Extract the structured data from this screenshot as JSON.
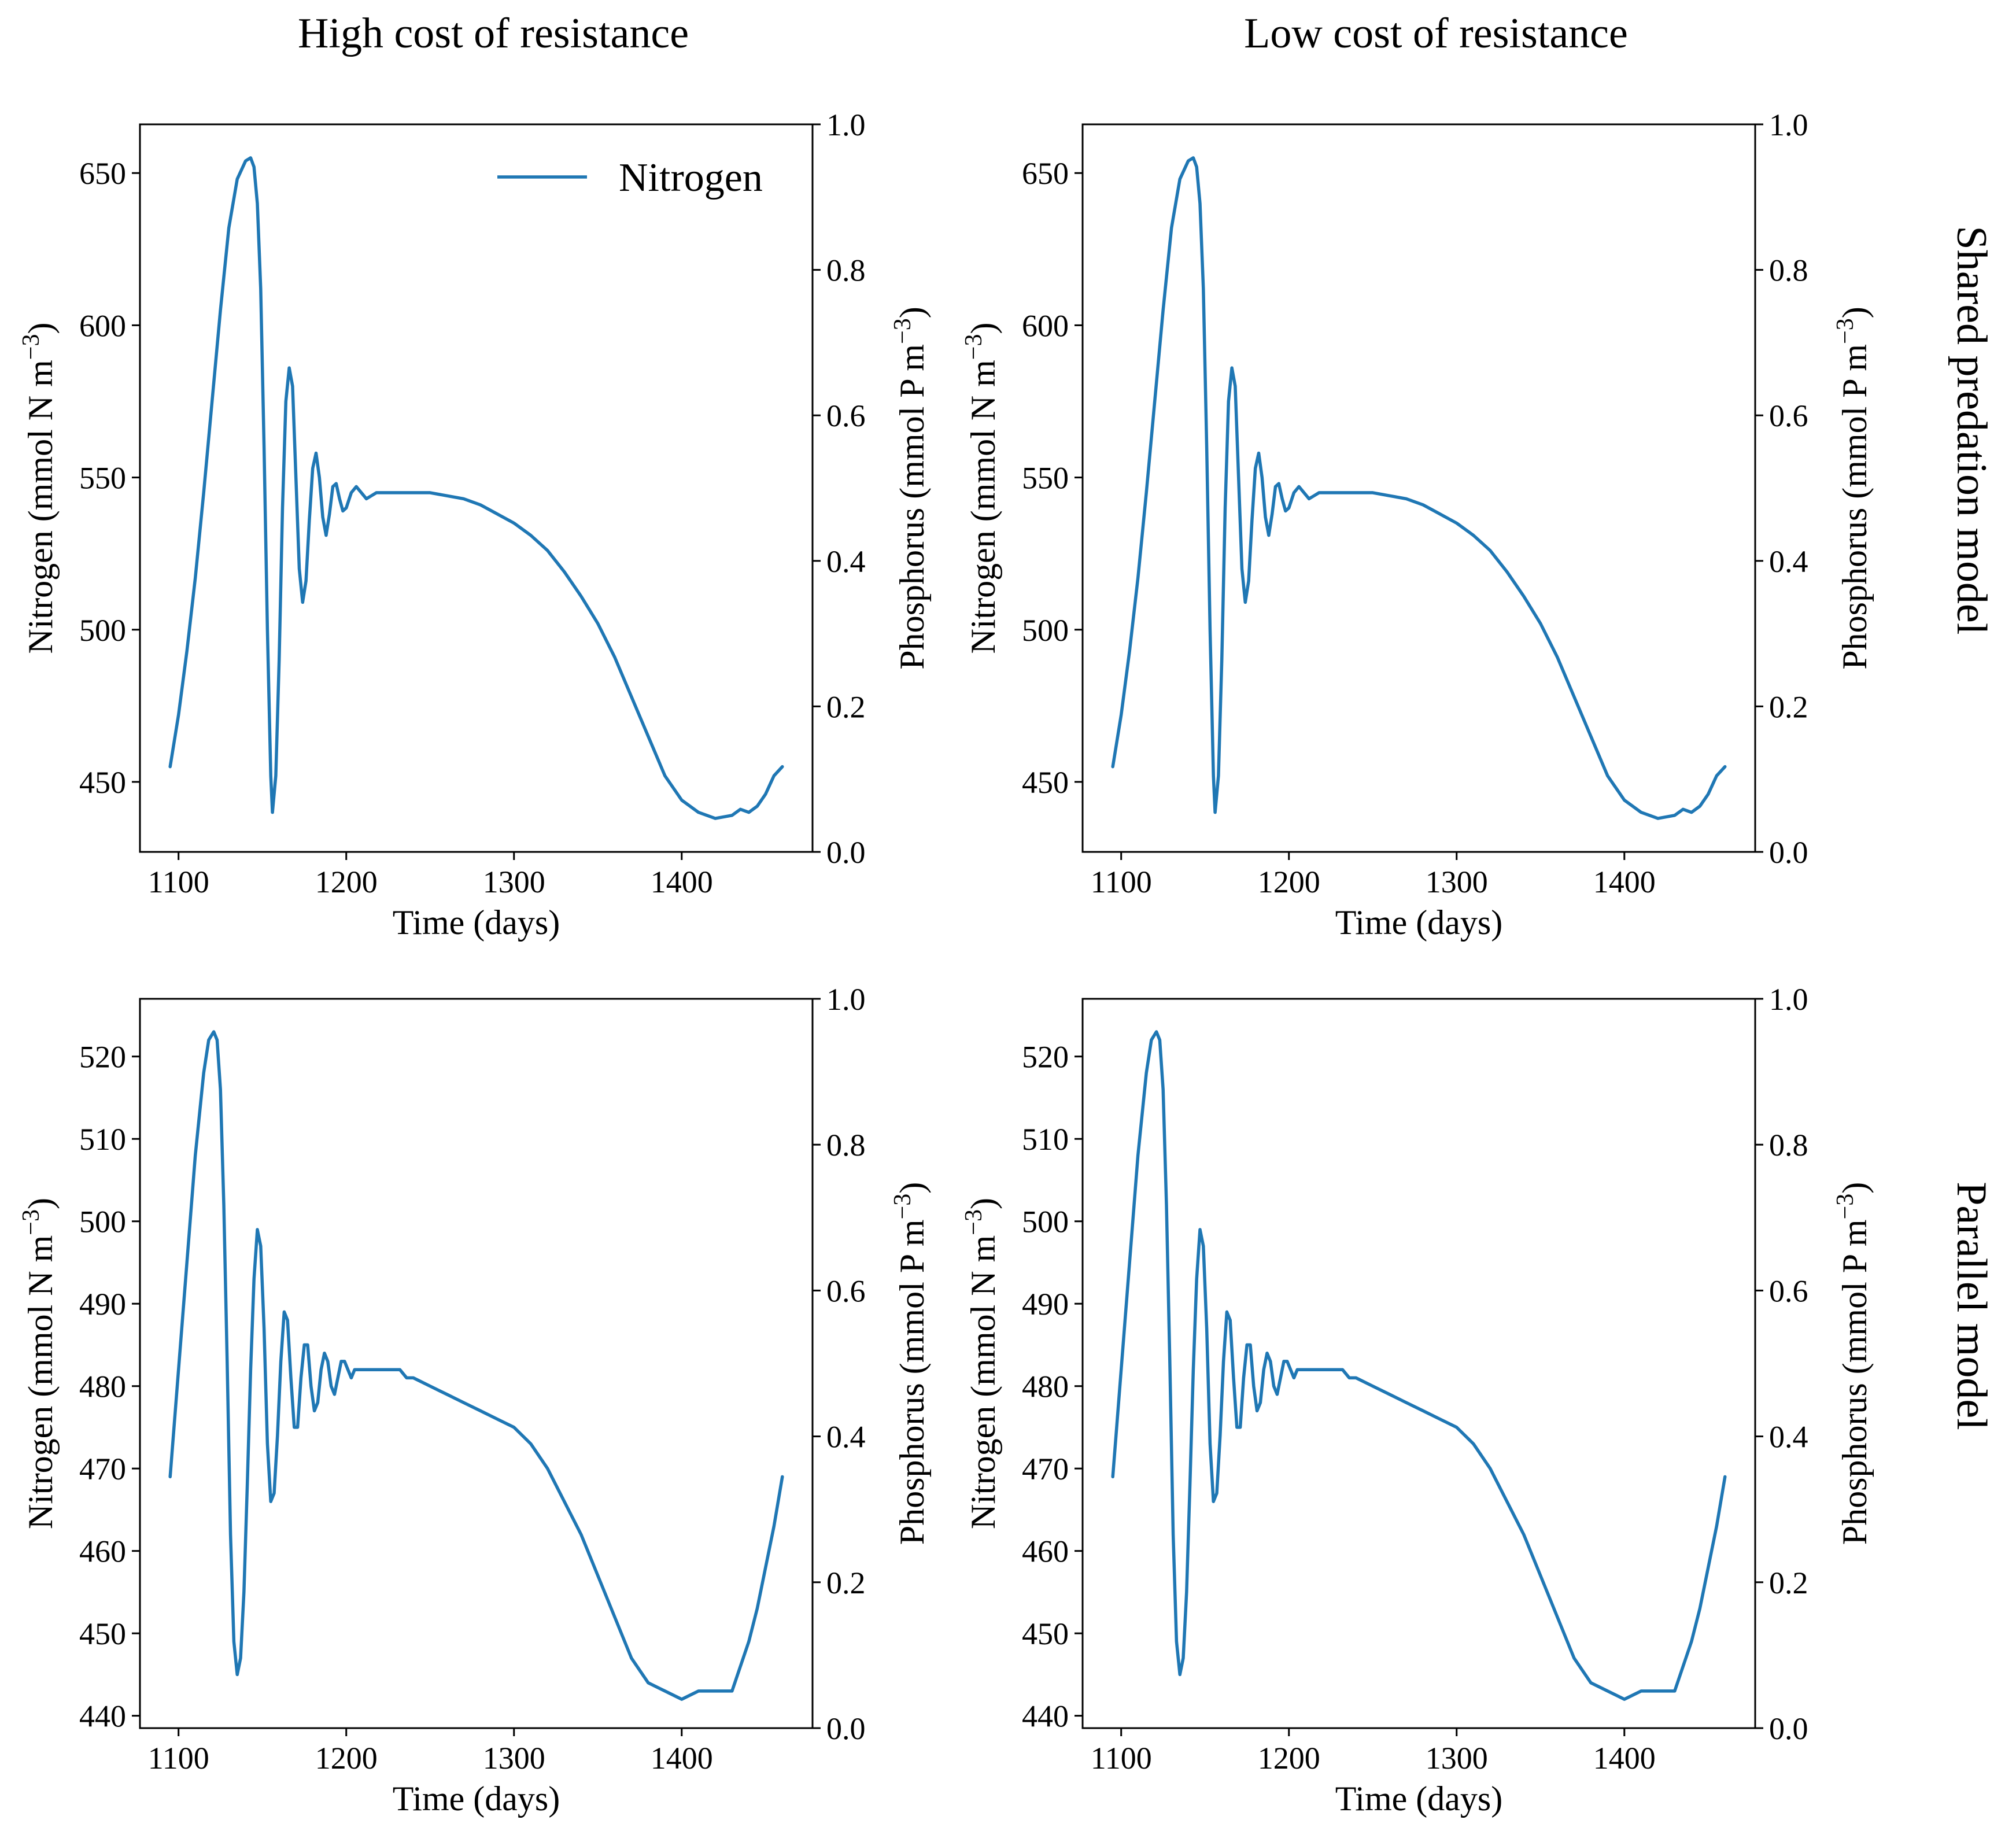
{
  "figure": {
    "column_titles": [
      "High cost of resistance",
      "Low cost of resistance"
    ],
    "row_titles": [
      "Shared predation model",
      "Parallel model"
    ],
    "line_color": "#1f77b4"
  },
  "chart_data": [
    {
      "type": "line",
      "panel": "top-left",
      "title": "",
      "xlabel": "Time (days)",
      "ylabel": "Nitrogen (mmol N m⁻³)",
      "y2label": "Phosphorus (mmol P m⁻³)",
      "xlim": [
        1077,
        1478
      ],
      "ylim": [
        427,
        666
      ],
      "y2lim": [
        0,
        1
      ],
      "xticks": [
        1100,
        1200,
        1300,
        1400
      ],
      "yticks": [
        450,
        500,
        550,
        600,
        650
      ],
      "y2ticks": [
        0.0,
        0.2,
        0.4,
        0.6,
        0.8,
        1.0
      ],
      "y2ticklabels": [
        "0.0",
        "0.2",
        "0.4",
        "0.6",
        "0.8",
        "1.0"
      ],
      "legend": {
        "entries": [
          "Nitrogen"
        ],
        "placement": "top-right"
      },
      "series": [
        {
          "name": "Nitrogen",
          "x": [
            1095,
            1100,
            1105,
            1110,
            1115,
            1120,
            1125,
            1130,
            1135,
            1140,
            1143,
            1145,
            1147,
            1149,
            1151,
            1153,
            1155,
            1156,
            1158,
            1160,
            1162,
            1164,
            1166,
            1168,
            1170,
            1172,
            1174,
            1176,
            1178,
            1180,
            1182,
            1184,
            1186,
            1188,
            1190,
            1192,
            1194,
            1196,
            1198,
            1200,
            1203,
            1206,
            1209,
            1212,
            1215,
            1218,
            1222,
            1226,
            1230,
            1235,
            1240,
            1250,
            1260,
            1270,
            1280,
            1290,
            1300,
            1310,
            1320,
            1330,
            1340,
            1350,
            1360,
            1370,
            1380,
            1390,
            1400,
            1410,
            1420,
            1430,
            1435,
            1440,
            1445,
            1450,
            1455,
            1460
          ],
          "values": [
            455,
            472,
            493,
            517,
            545,
            575,
            605,
            632,
            648,
            654,
            655,
            652,
            640,
            612,
            560,
            500,
            452,
            440,
            452,
            490,
            540,
            575,
            586,
            580,
            550,
            520,
            509,
            516,
            536,
            553,
            558,
            550,
            537,
            531,
            538,
            547,
            548,
            543,
            539,
            540,
            545,
            547,
            545,
            543,
            544,
            545,
            545,
            545,
            545,
            545,
            545,
            545,
            544,
            543,
            541,
            538,
            535,
            531,
            526,
            519,
            511,
            502,
            491,
            478,
            465,
            452,
            444,
            440,
            438,
            439,
            441,
            440,
            442,
            446,
            452,
            455
          ]
        }
      ]
    },
    {
      "type": "line",
      "panel": "top-right",
      "title": "",
      "xlabel": "Time (days)",
      "ylabel": "Nitrogen (mmol N m⁻³)",
      "y2label": "Phosphorus (mmol P m⁻³)",
      "xlim": [
        1077,
        1478
      ],
      "ylim": [
        427,
        666
      ],
      "y2lim": [
        0,
        1
      ],
      "xticks": [
        1100,
        1200,
        1300,
        1400
      ],
      "yticks": [
        450,
        500,
        550,
        600,
        650
      ],
      "y2ticks": [
        0.0,
        0.2,
        0.4,
        0.6,
        0.8,
        1.0
      ],
      "y2ticklabels": [
        "0.0",
        "0.2",
        "0.4",
        "0.6",
        "0.8",
        "1.0"
      ],
      "series": [
        {
          "x": [
            1095,
            1100,
            1105,
            1110,
            1115,
            1120,
            1125,
            1130,
            1135,
            1140,
            1143,
            1145,
            1147,
            1149,
            1151,
            1153,
            1155,
            1156,
            1158,
            1160,
            1162,
            1164,
            1166,
            1168,
            1170,
            1172,
            1174,
            1176,
            1178,
            1180,
            1182,
            1184,
            1186,
            1188,
            1190,
            1192,
            1194,
            1196,
            1198,
            1200,
            1203,
            1206,
            1209,
            1212,
            1215,
            1218,
            1222,
            1226,
            1230,
            1235,
            1240,
            1250,
            1260,
            1270,
            1280,
            1290,
            1300,
            1310,
            1320,
            1330,
            1340,
            1350,
            1360,
            1370,
            1380,
            1390,
            1400,
            1410,
            1420,
            1430,
            1435,
            1440,
            1445,
            1450,
            1455,
            1460
          ],
          "values": [
            455,
            472,
            493,
            517,
            545,
            575,
            605,
            632,
            648,
            654,
            655,
            652,
            640,
            612,
            560,
            500,
            452,
            440,
            452,
            490,
            540,
            575,
            586,
            580,
            550,
            520,
            509,
            516,
            536,
            553,
            558,
            550,
            537,
            531,
            538,
            547,
            548,
            543,
            539,
            540,
            545,
            547,
            545,
            543,
            544,
            545,
            545,
            545,
            545,
            545,
            545,
            545,
            544,
            543,
            541,
            538,
            535,
            531,
            526,
            519,
            511,
            502,
            491,
            478,
            465,
            452,
            444,
            440,
            438,
            439,
            441,
            440,
            442,
            446,
            452,
            455
          ]
        }
      ]
    },
    {
      "type": "line",
      "panel": "bottom-left",
      "title": "",
      "xlabel": "Time (days)",
      "ylabel": "Nitrogen (mmol N m⁻³)",
      "y2label": "Phosphorus (mmol P m⁻³)",
      "xlim": [
        1077,
        1478
      ],
      "ylim": [
        438.5,
        527
      ],
      "y2lim": [
        0,
        1
      ],
      "xticks": [
        1100,
        1200,
        1300,
        1400
      ],
      "yticks": [
        440,
        450,
        460,
        470,
        480,
        490,
        500,
        510,
        520
      ],
      "y2ticks": [
        0.0,
        0.2,
        0.4,
        0.6,
        0.8,
        1.0
      ],
      "y2ticklabels": [
        "0.0",
        "0.2",
        "0.4",
        "0.6",
        "0.8",
        "1.0"
      ],
      "series": [
        {
          "x": [
            1095,
            1100,
            1105,
            1110,
            1115,
            1118,
            1121,
            1123,
            1125,
            1127,
            1129,
            1131,
            1133,
            1135,
            1137,
            1139,
            1141,
            1143,
            1145,
            1147,
            1149,
            1151,
            1153,
            1155,
            1157,
            1159,
            1161,
            1163,
            1165,
            1167,
            1169,
            1171,
            1173,
            1175,
            1177,
            1179,
            1181,
            1183,
            1185,
            1187,
            1189,
            1191,
            1193,
            1195,
            1197,
            1199,
            1201,
            1203,
            1205,
            1208,
            1211,
            1214,
            1217,
            1220,
            1224,
            1228,
            1232,
            1236,
            1240,
            1250,
            1260,
            1270,
            1280,
            1290,
            1300,
            1310,
            1320,
            1330,
            1340,
            1350,
            1360,
            1370,
            1380,
            1390,
            1400,
            1410,
            1420,
            1425,
            1430,
            1435,
            1440,
            1445,
            1450,
            1455,
            1460
          ],
          "values": [
            469,
            482,
            495,
            508,
            518,
            522,
            523,
            522,
            516,
            502,
            483,
            462,
            449,
            445,
            447,
            455,
            468,
            482,
            493,
            499,
            497,
            487,
            473,
            466,
            467,
            474,
            483,
            489,
            488,
            481,
            475,
            475,
            481,
            485,
            485,
            480,
            477,
            478,
            482,
            484,
            483,
            480,
            479,
            481,
            483,
            483,
            482,
            481,
            482,
            482,
            482,
            482,
            482,
            482,
            482,
            482,
            482,
            481,
            481,
            480,
            479,
            478,
            477,
            476,
            475,
            473,
            470,
            466,
            462,
            457,
            452,
            447,
            444,
            443,
            442,
            443,
            443,
            443,
            443,
            446,
            449,
            453,
            458,
            463,
            469
          ]
        }
      ]
    },
    {
      "type": "line",
      "panel": "bottom-right",
      "title": "",
      "xlabel": "Time (days)",
      "ylabel": "Nitrogen (mmol N m⁻³)",
      "y2label": "Phosphorus (mmol P m⁻³)",
      "xlim": [
        1077,
        1478
      ],
      "ylim": [
        438.5,
        527
      ],
      "y2lim": [
        0,
        1
      ],
      "xticks": [
        1100,
        1200,
        1300,
        1400
      ],
      "yticks": [
        440,
        450,
        460,
        470,
        480,
        490,
        500,
        510,
        520
      ],
      "y2ticks": [
        0.0,
        0.2,
        0.4,
        0.6,
        0.8,
        1.0
      ],
      "y2ticklabels": [
        "0.0",
        "0.2",
        "0.4",
        "0.6",
        "0.8",
        "1.0"
      ],
      "series": [
        {
          "x": [
            1095,
            1100,
            1105,
            1110,
            1115,
            1118,
            1121,
            1123,
            1125,
            1127,
            1129,
            1131,
            1133,
            1135,
            1137,
            1139,
            1141,
            1143,
            1145,
            1147,
            1149,
            1151,
            1153,
            1155,
            1157,
            1159,
            1161,
            1163,
            1165,
            1167,
            1169,
            1171,
            1173,
            1175,
            1177,
            1179,
            1181,
            1183,
            1185,
            1187,
            1189,
            1191,
            1193,
            1195,
            1197,
            1199,
            1201,
            1203,
            1205,
            1208,
            1211,
            1214,
            1217,
            1220,
            1224,
            1228,
            1232,
            1236,
            1240,
            1250,
            1260,
            1270,
            1280,
            1290,
            1300,
            1310,
            1320,
            1330,
            1340,
            1350,
            1360,
            1370,
            1380,
            1390,
            1400,
            1410,
            1420,
            1425,
            1430,
            1435,
            1440,
            1445,
            1450,
            1455,
            1460
          ],
          "values": [
            469,
            482,
            495,
            508,
            518,
            522,
            523,
            522,
            516,
            502,
            483,
            462,
            449,
            445,
            447,
            455,
            468,
            482,
            493,
            499,
            497,
            487,
            473,
            466,
            467,
            474,
            483,
            489,
            488,
            481,
            475,
            475,
            481,
            485,
            485,
            480,
            477,
            478,
            482,
            484,
            483,
            480,
            479,
            481,
            483,
            483,
            482,
            481,
            482,
            482,
            482,
            482,
            482,
            482,
            482,
            482,
            482,
            481,
            481,
            480,
            479,
            478,
            477,
            476,
            475,
            473,
            470,
            466,
            462,
            457,
            452,
            447,
            444,
            443,
            442,
            443,
            443,
            443,
            443,
            446,
            449,
            453,
            458,
            463,
            469
          ]
        }
      ]
    }
  ]
}
